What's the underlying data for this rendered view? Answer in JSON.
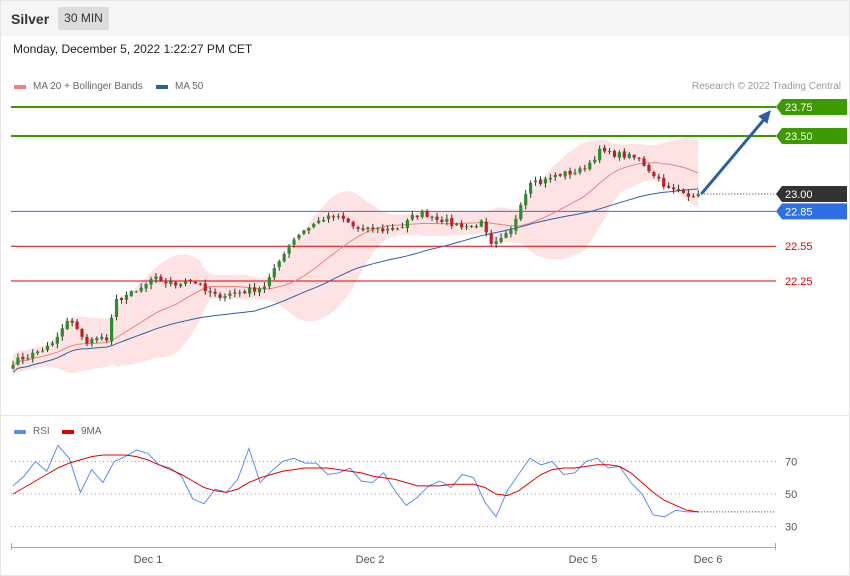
{
  "header": {
    "symbol": "Silver",
    "timeframe": "30 MIN"
  },
  "datetime": "Monday, December 5, 2022 1:22:27 PM CET",
  "legend": {
    "items": [
      {
        "label": "MA 20 + Bollinger Bands",
        "color": "#f08080"
      },
      {
        "label": "MA 50",
        "color": "#2e5fa3"
      }
    ],
    "credit": "Research © 2022 Trading Central"
  },
  "rsi_legend": {
    "items": [
      {
        "label": "RSI",
        "color": "#5b8def"
      },
      {
        "label": "9MA",
        "color": "#e00000"
      }
    ]
  },
  "chart_data": [
    {
      "type": "candlestick",
      "title": "Silver",
      "interval": "30 MIN",
      "x_tick_labels": [
        "Dec 1",
        "Dec 2",
        "Dec 5",
        "Dec 6"
      ],
      "current_price": 23.0,
      "levels": [
        {
          "value": 23.75,
          "label": "23.75",
          "kind": "resistance",
          "color": "#3e9a00"
        },
        {
          "value": 23.5,
          "label": "23.50",
          "kind": "resistance",
          "color": "#3e9a00"
        },
        {
          "value": 23.0,
          "label": "23.00",
          "kind": "last",
          "color": "#333333"
        },
        {
          "value": 22.85,
          "label": "22.85",
          "kind": "pivot",
          "color": "#2f6fe6"
        },
        {
          "value": 22.55,
          "label": "22.55",
          "kind": "support",
          "color": "#e00000"
        },
        {
          "value": 22.25,
          "label": "22.25",
          "kind": "support",
          "color": "#e00000"
        }
      ],
      "ylim": [
        21.45,
        23.95
      ],
      "close_path": [
        [
          0,
          21.55
        ],
        [
          4,
          21.62
        ],
        [
          8,
          21.7
        ],
        [
          11,
          21.9
        ],
        [
          13,
          21.85
        ],
        [
          15,
          21.7
        ],
        [
          17,
          21.78
        ],
        [
          19,
          21.74
        ],
        [
          21,
          22.08
        ],
        [
          23,
          22.13
        ],
        [
          25,
          22.15
        ],
        [
          27,
          22.22
        ],
        [
          29,
          22.27
        ],
        [
          31,
          22.24
        ],
        [
          33,
          22.22
        ],
        [
          35,
          22.26
        ],
        [
          37,
          22.24
        ],
        [
          39,
          22.16
        ],
        [
          41,
          22.12
        ],
        [
          43,
          22.13
        ],
        [
          45,
          22.15
        ],
        [
          47,
          22.16
        ],
        [
          49,
          22.18
        ],
        [
          51,
          22.21
        ],
        [
          53,
          22.34
        ],
        [
          55,
          22.5
        ],
        [
          57,
          22.62
        ],
        [
          59,
          22.69
        ],
        [
          61,
          22.74
        ],
        [
          63,
          22.79
        ],
        [
          65,
          22.8
        ],
        [
          67,
          22.78
        ],
        [
          69,
          22.72
        ],
        [
          71,
          22.68
        ],
        [
          73,
          22.7
        ],
        [
          75,
          22.69
        ],
        [
          77,
          22.7
        ],
        [
          79,
          22.72
        ],
        [
          81,
          22.8
        ],
        [
          83,
          22.84
        ],
        [
          85,
          22.81
        ],
        [
          87,
          22.78
        ],
        [
          89,
          22.74
        ],
        [
          91,
          22.73
        ],
        [
          93,
          22.72
        ],
        [
          95,
          22.75
        ],
        [
          97,
          22.55
        ],
        [
          99,
          22.6
        ],
        [
          101,
          22.7
        ],
        [
          103,
          22.92
        ],
        [
          105,
          23.12
        ],
        [
          107,
          23.1
        ],
        [
          109,
          23.14
        ],
        [
          111,
          23.17
        ],
        [
          113,
          23.18
        ],
        [
          115,
          23.2
        ],
        [
          117,
          23.27
        ],
        [
          119,
          23.37
        ],
        [
          121,
          23.35
        ],
        [
          123,
          23.34
        ],
        [
          125,
          23.32
        ],
        [
          127,
          23.3
        ],
        [
          129,
          23.21
        ],
        [
          131,
          23.13
        ],
        [
          133,
          23.04
        ],
        [
          135,
          23.02
        ],
        [
          137,
          23.0
        ],
        [
          139,
          23.0
        ]
      ],
      "series": [
        {
          "name": "MA 20 + Bollinger Bands",
          "color": "#f08080"
        },
        {
          "name": "MA 50",
          "color": "#2e5fa3"
        }
      ],
      "forecast_arrow": {
        "from": 23.0,
        "to": 23.75,
        "color": "#2e5fa3"
      }
    },
    {
      "type": "line",
      "title": "RSI",
      "y_tick_labels": [
        "70",
        "50",
        "30"
      ],
      "y_ticks": [
        70,
        50,
        30
      ],
      "ylim": [
        20,
        85
      ],
      "series": [
        {
          "name": "RSI",
          "color": "#5b8def",
          "values": [
            55,
            61,
            70,
            64,
            80,
            72,
            51,
            65,
            57,
            70,
            73,
            77,
            75,
            68,
            66,
            61,
            47,
            44,
            53,
            51,
            59,
            78,
            57,
            64,
            70,
            72,
            69,
            69,
            62,
            63,
            66,
            58,
            57,
            63,
            52,
            43,
            48,
            55,
            58,
            54,
            62,
            60,
            45,
            36,
            52,
            62,
            72,
            68,
            70,
            62,
            63,
            70,
            72,
            66,
            67,
            57,
            50,
            37,
            36,
            40,
            39,
            39
          ]
        },
        {
          "name": "9MA",
          "color": "#e00000",
          "values": [
            50,
            54,
            58,
            62,
            66,
            69,
            71,
            73,
            74,
            74,
            74,
            73,
            71,
            68,
            65,
            62,
            58,
            54,
            52,
            51,
            53,
            57,
            60,
            62,
            64,
            65,
            66,
            66,
            66,
            65,
            64,
            63,
            61,
            60,
            59,
            57,
            55,
            55,
            55,
            56,
            56,
            56,
            54,
            50,
            49,
            52,
            57,
            62,
            65,
            66,
            66,
            67,
            68,
            68,
            67,
            63,
            57,
            51,
            46,
            43,
            40,
            39
          ]
        }
      ]
    }
  ]
}
